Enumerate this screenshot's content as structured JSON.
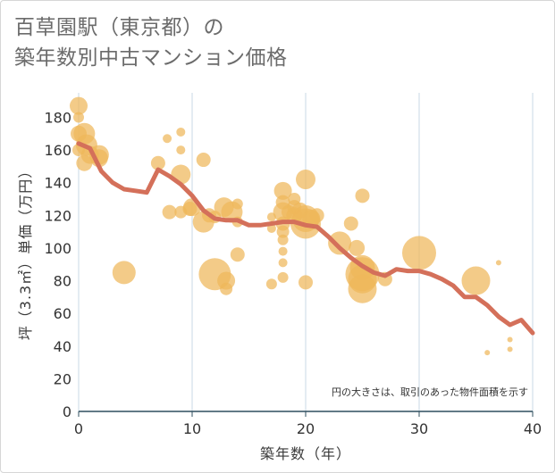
{
  "title": {
    "line1": "百草園駅（東京都）の",
    "line2": "築年数別中古マンション価格"
  },
  "note": "円の大きさは、取引のあった物件面積を示す",
  "colors": {
    "bubble": "#efb75a",
    "line": "#d4705a",
    "grid": "#c9d8e6",
    "axis": "#2f4f5f"
  },
  "chart_data": {
    "type": "scatter",
    "xlabel": "築年数（年）",
    "ylabel": "坪（3.3㎡）単価（万円）",
    "xlim": [
      0,
      40
    ],
    "ylim": [
      0,
      195
    ],
    "xticks": [
      0,
      10,
      20,
      30,
      40
    ],
    "yticks": [
      0,
      20,
      40,
      60,
      80,
      100,
      120,
      140,
      160,
      180
    ],
    "grid": "vertical",
    "bubbles": [
      {
        "x": 0,
        "y": 187,
        "s": 10
      },
      {
        "x": 0,
        "y": 180,
        "s": 6
      },
      {
        "x": 0,
        "y": 170,
        "s": 9
      },
      {
        "x": 0,
        "y": 160,
        "s": 7
      },
      {
        "x": 0.5,
        "y": 170,
        "s": 12
      },
      {
        "x": 0.7,
        "y": 163,
        "s": 12
      },
      {
        "x": 0.5,
        "y": 152,
        "s": 9
      },
      {
        "x": 1,
        "y": 157,
        "s": 10
      },
      {
        "x": 1.8,
        "y": 157,
        "s": 11
      },
      {
        "x": 1.8,
        "y": 155,
        "s": 10
      },
      {
        "x": 4,
        "y": 85,
        "s": 13
      },
      {
        "x": 7,
        "y": 152,
        "s": 8
      },
      {
        "x": 7.8,
        "y": 167,
        "s": 5
      },
      {
        "x": 8,
        "y": 122,
        "s": 8
      },
      {
        "x": 9,
        "y": 171,
        "s": 5
      },
      {
        "x": 9,
        "y": 160,
        "s": 5
      },
      {
        "x": 9,
        "y": 145,
        "s": 11
      },
      {
        "x": 9,
        "y": 122,
        "s": 7
      },
      {
        "x": 9.8,
        "y": 124,
        "s": 8
      },
      {
        "x": 10,
        "y": 125,
        "s": 10
      },
      {
        "x": 11,
        "y": 154,
        "s": 8
      },
      {
        "x": 11,
        "y": 116,
        "s": 12
      },
      {
        "x": 11.5,
        "y": 120,
        "s": 8
      },
      {
        "x": 12,
        "y": 84,
        "s": 18
      },
      {
        "x": 12,
        "y": 119,
        "s": 7
      },
      {
        "x": 12.8,
        "y": 125,
        "s": 11
      },
      {
        "x": 13,
        "y": 80,
        "s": 10
      },
      {
        "x": 13,
        "y": 75,
        "s": 7
      },
      {
        "x": 13.5,
        "y": 122,
        "s": 12
      },
      {
        "x": 14,
        "y": 127,
        "s": 6
      },
      {
        "x": 14,
        "y": 116,
        "s": 6
      },
      {
        "x": 14,
        "y": 96,
        "s": 8
      },
      {
        "x": 17,
        "y": 119,
        "s": 5
      },
      {
        "x": 17,
        "y": 112,
        "s": 5
      },
      {
        "x": 17,
        "y": 78,
        "s": 6
      },
      {
        "x": 18,
        "y": 135,
        "s": 10
      },
      {
        "x": 18,
        "y": 128,
        "s": 8
      },
      {
        "x": 18,
        "y": 122,
        "s": 11
      },
      {
        "x": 18,
        "y": 115,
        "s": 8
      },
      {
        "x": 18,
        "y": 110,
        "s": 7
      },
      {
        "x": 18,
        "y": 105,
        "s": 6
      },
      {
        "x": 18,
        "y": 98,
        "s": 5
      },
      {
        "x": 18,
        "y": 91,
        "s": 5
      },
      {
        "x": 18,
        "y": 82,
        "s": 6
      },
      {
        "x": 18.5,
        "y": 122,
        "s": 8
      },
      {
        "x": 19,
        "y": 130,
        "s": 7
      },
      {
        "x": 19,
        "y": 125,
        "s": 8
      },
      {
        "x": 19,
        "y": 120,
        "s": 9
      },
      {
        "x": 19.5,
        "y": 123,
        "s": 9
      },
      {
        "x": 20,
        "y": 142,
        "s": 11
      },
      {
        "x": 20,
        "y": 118,
        "s": 15
      },
      {
        "x": 20,
        "y": 115,
        "s": 17
      },
      {
        "x": 20,
        "y": 79,
        "s": 8
      },
      {
        "x": 20.5,
        "y": 118,
        "s": 10
      },
      {
        "x": 21,
        "y": 120,
        "s": 8
      },
      {
        "x": 23,
        "y": 103,
        "s": 13
      },
      {
        "x": 24,
        "y": 115,
        "s": 8
      },
      {
        "x": 24.5,
        "y": 100,
        "s": 9
      },
      {
        "x": 25,
        "y": 132,
        "s": 8
      },
      {
        "x": 25,
        "y": 88,
        "s": 14
      },
      {
        "x": 25,
        "y": 84,
        "s": 19
      },
      {
        "x": 25,
        "y": 81,
        "s": 16
      },
      {
        "x": 25,
        "y": 75,
        "s": 16
      },
      {
        "x": 27,
        "y": 81,
        "s": 8
      },
      {
        "x": 30,
        "y": 97,
        "s": 19
      },
      {
        "x": 35,
        "y": 80,
        "s": 16
      },
      {
        "x": 36,
        "y": 36,
        "s": 3
      },
      {
        "x": 37,
        "y": 91,
        "s": 3
      },
      {
        "x": 38,
        "y": 44,
        "s": 3
      },
      {
        "x": 38,
        "y": 38,
        "s": 3
      }
    ],
    "trend": {
      "x": [
        0,
        1,
        2,
        3,
        4,
        5,
        6,
        7,
        8,
        9,
        10,
        11,
        12,
        13,
        14,
        15,
        16,
        17,
        18,
        19,
        20,
        21,
        22,
        23,
        24,
        25,
        26,
        27,
        28,
        29,
        30,
        31,
        32,
        33,
        34,
        35,
        36,
        37,
        38,
        39,
        40
      ],
      "y": [
        164,
        161,
        147,
        140,
        136,
        135,
        134,
        148,
        144,
        139,
        132,
        123,
        118,
        117,
        117,
        114,
        114,
        115,
        116,
        116,
        114,
        113,
        107,
        100,
        94,
        89,
        85,
        83,
        87,
        86,
        86,
        84,
        81,
        77,
        70,
        70,
        65,
        58,
        53,
        56,
        48
      ]
    }
  }
}
